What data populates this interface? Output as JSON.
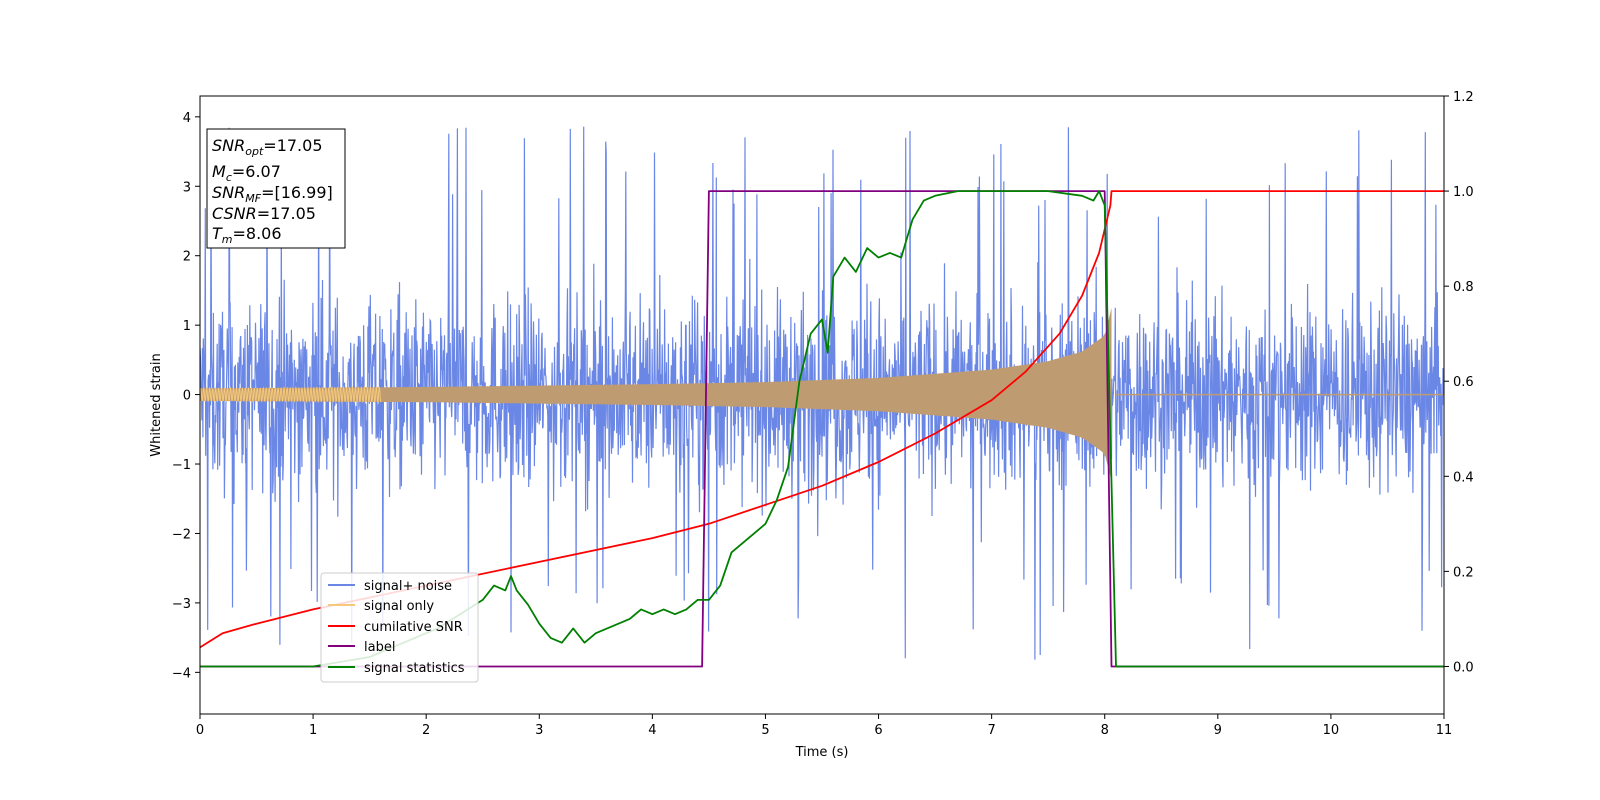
{
  "chart_data": {
    "type": "line",
    "xlabel": "Time (s)",
    "ylabel": "Whitened strain",
    "xlim": [
      0,
      11
    ],
    "ylim": [
      -4.6,
      4.3
    ],
    "y2lim": [
      -0.1,
      1.2
    ],
    "x_ticks": [
      "0",
      "1",
      "2",
      "3",
      "4",
      "5",
      "6",
      "7",
      "8",
      "9",
      "10",
      "11"
    ],
    "y_ticks": [
      "−4",
      "−3",
      "−2",
      "−1",
      "0",
      "1",
      "2",
      "3",
      "4"
    ],
    "y2_ticks": [
      "0.0",
      "0.2",
      "0.4",
      "0.6",
      "0.8",
      "1.0",
      "1.2"
    ],
    "grid": false,
    "legend_position": "lower-left",
    "legend": [
      "signal+ noise",
      "signal only",
      "cumilative SNR",
      "label",
      "signal statistics"
    ],
    "colors": {
      "signal_noise": "#6b87e6",
      "signal_only": "#f5c87a",
      "signal_only_overlap": "#bf9b72",
      "cumulative_snr": "#ff0000",
      "label": "#800080",
      "signal_statistics": "#008000"
    },
    "annotation": {
      "snr_opt": "=17.05",
      "mc": "=6.07",
      "snr_mf": "=[16.99]",
      "csnr": "=17.05",
      "tm": "=8.06"
    },
    "noise_envelope": {
      "typical_range": [
        -1.5,
        1.5
      ],
      "peak_max": 3.87,
      "peak_min": -4.15
    },
    "signal_only_envelope": {
      "x": [
        0,
        1,
        2,
        3,
        4,
        5,
        6,
        7,
        7.5,
        7.8,
        8.0,
        8.06
      ],
      "amplitude": [
        0.09,
        0.1,
        0.11,
        0.13,
        0.15,
        0.18,
        0.24,
        0.36,
        0.48,
        0.62,
        0.85,
        1.25
      ]
    },
    "series": [
      {
        "name": "cumilative SNR",
        "axis": "right",
        "x": [
          0,
          0.2,
          0.5,
          1,
          2,
          3,
          4,
          4.5,
          5,
          5.5,
          6,
          6.5,
          7,
          7.3,
          7.6,
          7.8,
          7.95,
          8.05,
          8.06,
          11
        ],
        "y": [
          0.04,
          0.07,
          0.09,
          0.12,
          0.17,
          0.22,
          0.27,
          0.3,
          0.34,
          0.38,
          0.43,
          0.49,
          0.56,
          0.62,
          0.7,
          0.78,
          0.87,
          0.97,
          1.0,
          1.0
        ]
      },
      {
        "name": "label",
        "axis": "right",
        "x": [
          0,
          4.44,
          4.5,
          8.0,
          8.06,
          11
        ],
        "y": [
          0,
          0,
          1,
          1,
          0,
          0
        ]
      },
      {
        "name": "signal statistics",
        "axis": "right",
        "x": [
          0,
          1,
          1.5,
          1.8,
          2.1,
          2.3,
          2.5,
          2.6,
          2.7,
          2.75,
          2.8,
          2.9,
          3.0,
          3.1,
          3.2,
          3.3,
          3.4,
          3.5,
          3.6,
          3.7,
          3.8,
          3.9,
          4.0,
          4.1,
          4.2,
          4.3,
          4.4,
          4.5,
          4.6,
          4.7,
          4.8,
          4.9,
          5.0,
          5.1,
          5.2,
          5.3,
          5.4,
          5.5,
          5.55,
          5.6,
          5.7,
          5.8,
          5.9,
          6.0,
          6.1,
          6.2,
          6.3,
          6.4,
          6.5,
          6.7,
          7.0,
          7.5,
          7.8,
          7.9,
          7.95,
          8.0,
          8.1,
          11
        ],
        "y": [
          0.0,
          0.0,
          0.02,
          0.05,
          0.08,
          0.11,
          0.14,
          0.17,
          0.16,
          0.19,
          0.16,
          0.13,
          0.09,
          0.06,
          0.05,
          0.08,
          0.05,
          0.07,
          0.08,
          0.09,
          0.1,
          0.12,
          0.11,
          0.12,
          0.11,
          0.12,
          0.14,
          0.14,
          0.17,
          0.24,
          0.26,
          0.28,
          0.3,
          0.35,
          0.42,
          0.6,
          0.7,
          0.73,
          0.66,
          0.82,
          0.86,
          0.83,
          0.88,
          0.86,
          0.87,
          0.86,
          0.94,
          0.98,
          0.99,
          1.0,
          1.0,
          1.0,
          0.99,
          0.98,
          1.0,
          0.97,
          0.0,
          0.0
        ]
      }
    ]
  }
}
